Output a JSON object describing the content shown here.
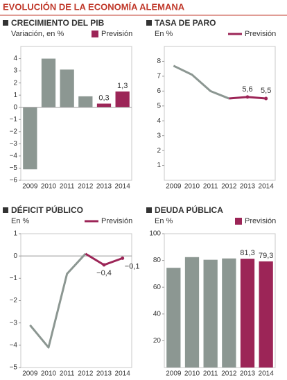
{
  "title": "EVOLUCIÓN DE LA ECONOMÍA ALEMANA",
  "chart_data": [
    {
      "type": "bar",
      "title": "CRECIMIENTO DEL PIB",
      "subtitle": "Variación, en %",
      "legend_label": "Previsión",
      "legend_color": "#9c2557",
      "categories": [
        "2009",
        "2010",
        "2011",
        "2012",
        "2013",
        "2014"
      ],
      "values": [
        -5.1,
        4.0,
        3.1,
        0.9,
        0.3,
        1.3
      ],
      "value_labels": [
        null,
        null,
        null,
        null,
        "0,3",
        "1,3"
      ],
      "colors": [
        "#8c9792",
        "#8c9792",
        "#8c9792",
        "#8c9792",
        "#9c2557",
        "#9c2557"
      ],
      "ylim": [
        -6,
        5
      ],
      "yticks": [
        {
          "value": -6,
          "label": "−6"
        },
        {
          "value": -5,
          "label": "−5"
        },
        {
          "value": -4,
          "label": "−4"
        },
        {
          "value": -3,
          "label": "−3"
        },
        {
          "value": -2,
          "label": "−2"
        },
        {
          "value": -1,
          "label": "−1"
        },
        0,
        1,
        2,
        3,
        4
      ]
    },
    {
      "type": "line",
      "title": "TASA DE PARO",
      "subtitle": "En %",
      "legend_label": "Previsión",
      "legend_color": "#9c2557",
      "categories": [
        "2009",
        "2010",
        "2011",
        "2012",
        "2013",
        "2014"
      ],
      "series": [
        {
          "color": "#8c9792",
          "values": [
            7.7,
            7.1,
            6.0,
            5.5,
            null,
            null
          ]
        },
        {
          "color": "#9c2557",
          "values": [
            null,
            null,
            null,
            5.5,
            5.6,
            5.5
          ],
          "value_labels": [
            null,
            null,
            null,
            null,
            "5,6",
            "5,5"
          ]
        }
      ],
      "ylim": [
        0,
        9
      ],
      "yticks": [
        1,
        2,
        3,
        4,
        5,
        6,
        7,
        8
      ]
    },
    {
      "type": "line",
      "title": "DÉFICIT PÚBLICO",
      "subtitle": "En %",
      "legend_label": "Previsión",
      "legend_color": "#9c2557",
      "categories": [
        "2009",
        "2010",
        "2011",
        "2012",
        "2013",
        "2014"
      ],
      "series": [
        {
          "color": "#8c9792",
          "values": [
            -3.1,
            -4.1,
            -0.8,
            0.1,
            null,
            null
          ]
        },
        {
          "color": "#9c2557",
          "values": [
            null,
            null,
            null,
            0.1,
            -0.4,
            -0.1
          ],
          "value_labels": [
            null,
            null,
            null,
            null,
            "−0,4",
            "−0,1"
          ]
        }
      ],
      "ylim": [
        -5,
        1
      ],
      "yticks": [
        {
          "value": -5,
          "label": "−5"
        },
        {
          "value": -4,
          "label": "−4"
        },
        {
          "value": -3,
          "label": "−3"
        },
        {
          "value": -2,
          "label": "−2"
        },
        {
          "value": -1,
          "label": "−1"
        },
        0,
        1
      ]
    },
    {
      "type": "bar",
      "title": "DEUDA PÚBLICA",
      "subtitle": "En %",
      "legend_label": "Previsión",
      "legend_color": "#9c2557",
      "categories": [
        "2009",
        "2010",
        "2011",
        "2012",
        "2013",
        "2014"
      ],
      "values": [
        74.5,
        82.5,
        80.5,
        81.5,
        81.3,
        79.3
      ],
      "value_labels": [
        null,
        null,
        null,
        null,
        "81,3",
        "79,3"
      ],
      "colors": [
        "#8c9792",
        "#8c9792",
        "#8c9792",
        "#8c9792",
        "#9c2557",
        "#9c2557"
      ],
      "ylim": [
        0,
        100
      ],
      "yticks": [
        20,
        40,
        60,
        80,
        100
      ]
    }
  ]
}
